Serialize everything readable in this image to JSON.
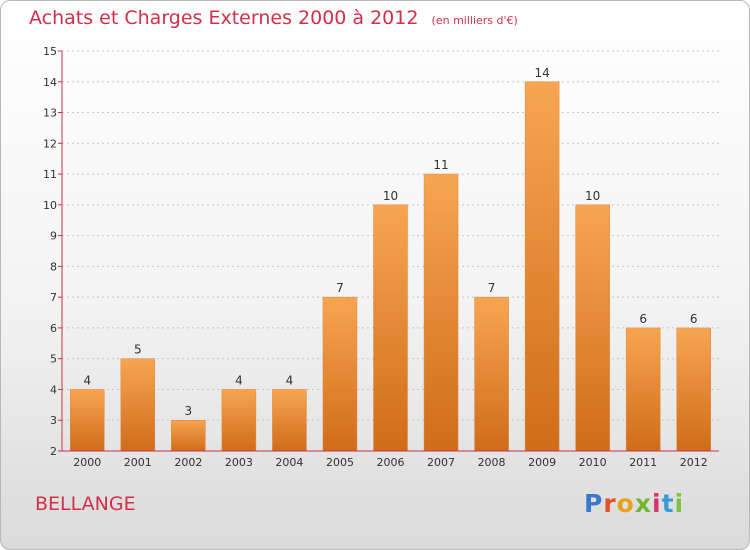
{
  "title": "Achats et Charges Externes 2000 à 2012",
  "unit_label": "(en milliers d'€)",
  "commune": "BELLANGE",
  "logo_letters": [
    "P",
    "r",
    "o",
    "x",
    "i",
    "t",
    "i"
  ],
  "colors": {
    "title": "#d1304a",
    "bar_top": "#f7a552",
    "bar_bottom": "#d06c1a",
    "axis": "#c8324e",
    "grid": "#c8c8c8"
  },
  "chart_data": {
    "type": "bar",
    "categories": [
      "2000",
      "2001",
      "2002",
      "2003",
      "2004",
      "2005",
      "2006",
      "2007",
      "2008",
      "2009",
      "2010",
      "2011",
      "2012"
    ],
    "values": [
      4,
      5,
      3,
      4,
      4,
      7,
      10,
      11,
      7,
      14,
      10,
      6,
      6
    ],
    "data_labels": [
      "4",
      "5",
      "3",
      "4",
      "4",
      "7",
      "10",
      "11",
      "7",
      "14",
      "10",
      "6",
      "6"
    ],
    "ylim": [
      2,
      15
    ],
    "yticks": [
      "2",
      "3",
      "4",
      "5",
      "6",
      "7",
      "8",
      "9",
      "10",
      "11",
      "12",
      "13",
      "14",
      "15"
    ],
    "grid": true,
    "title": "Achats et Charges Externes 2000 à 2012",
    "xlabel": "",
    "ylabel": ""
  }
}
